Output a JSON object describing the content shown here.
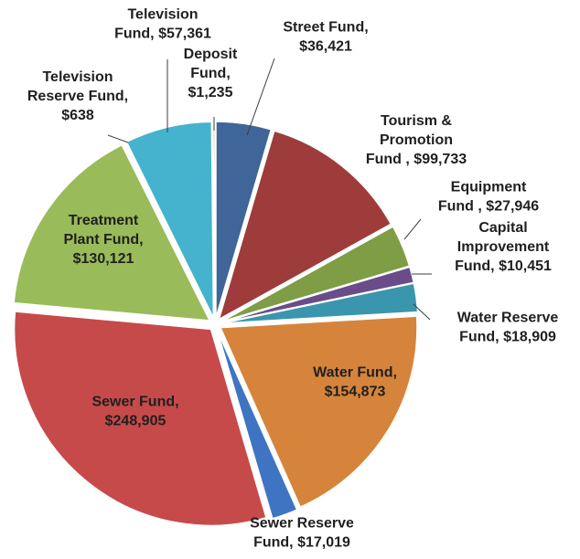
{
  "chart_data": {
    "type": "pie",
    "title": "",
    "exploded": true,
    "start_angle_deg": 0,
    "direction": "clockwise",
    "slices": [
      {
        "label_lines": [
          "Street Fund,",
          "$36,421"
        ],
        "name": "Street Fund",
        "value": 36421,
        "color": "#3f6599"
      },
      {
        "label_lines": [
          "Tourism &",
          "Promotion",
          "Fund , $99,733"
        ],
        "name": "Tourism & Promotion Fund",
        "value": 99733,
        "color": "#9e3b3b"
      },
      {
        "label_lines": [
          "Equipment",
          "Fund , $27,946"
        ],
        "name": "Equipment Fund",
        "value": 27946,
        "color": "#7e9d45"
      },
      {
        "label_lines": [
          "Capital",
          "Improvement",
          "Fund, $10,451"
        ],
        "name": "Capital Improvement Fund",
        "value": 10451,
        "color": "#6a4c8a"
      },
      {
        "label_lines": [
          "Water Reserve",
          "Fund, $18,909"
        ],
        "name": "Water Reserve Fund",
        "value": 18909,
        "color": "#3a96ad"
      },
      {
        "label_lines": [
          "Water Fund,",
          "$154,873"
        ],
        "name": "Water Fund",
        "value": 154873,
        "color": "#d6843b"
      },
      {
        "label_lines": [
          "Sewer Reserve",
          "Fund, $17,019"
        ],
        "name": "Sewer Reserve Fund",
        "value": 17019,
        "color": "#3f74c2"
      },
      {
        "label_lines": [
          "Sewer Fund,",
          "$248,905"
        ],
        "name": "Sewer Fund",
        "value": 248905,
        "color": "#c74a4a"
      },
      {
        "label_lines": [
          "Treatment",
          "Plant Fund,",
          "$130,121"
        ],
        "name": "Treatment Plant Fund",
        "value": 130121,
        "color": "#99bb5a"
      },
      {
        "label_lines": [
          "Television",
          "Reserve Fund,",
          "$638"
        ],
        "name": "Television Reserve Fund",
        "value": 638,
        "color": "#7b5aa0"
      },
      {
        "label_lines": [
          "Television",
          "Fund, $57,361"
        ],
        "name": "Television Fund",
        "value": 57361,
        "color": "#45b3cd"
      },
      {
        "label_lines": [
          "Deposit",
          "Fund,",
          "$1,235"
        ],
        "name": "Deposit Fund",
        "value": 1235,
        "color": "#e9904a"
      }
    ]
  }
}
